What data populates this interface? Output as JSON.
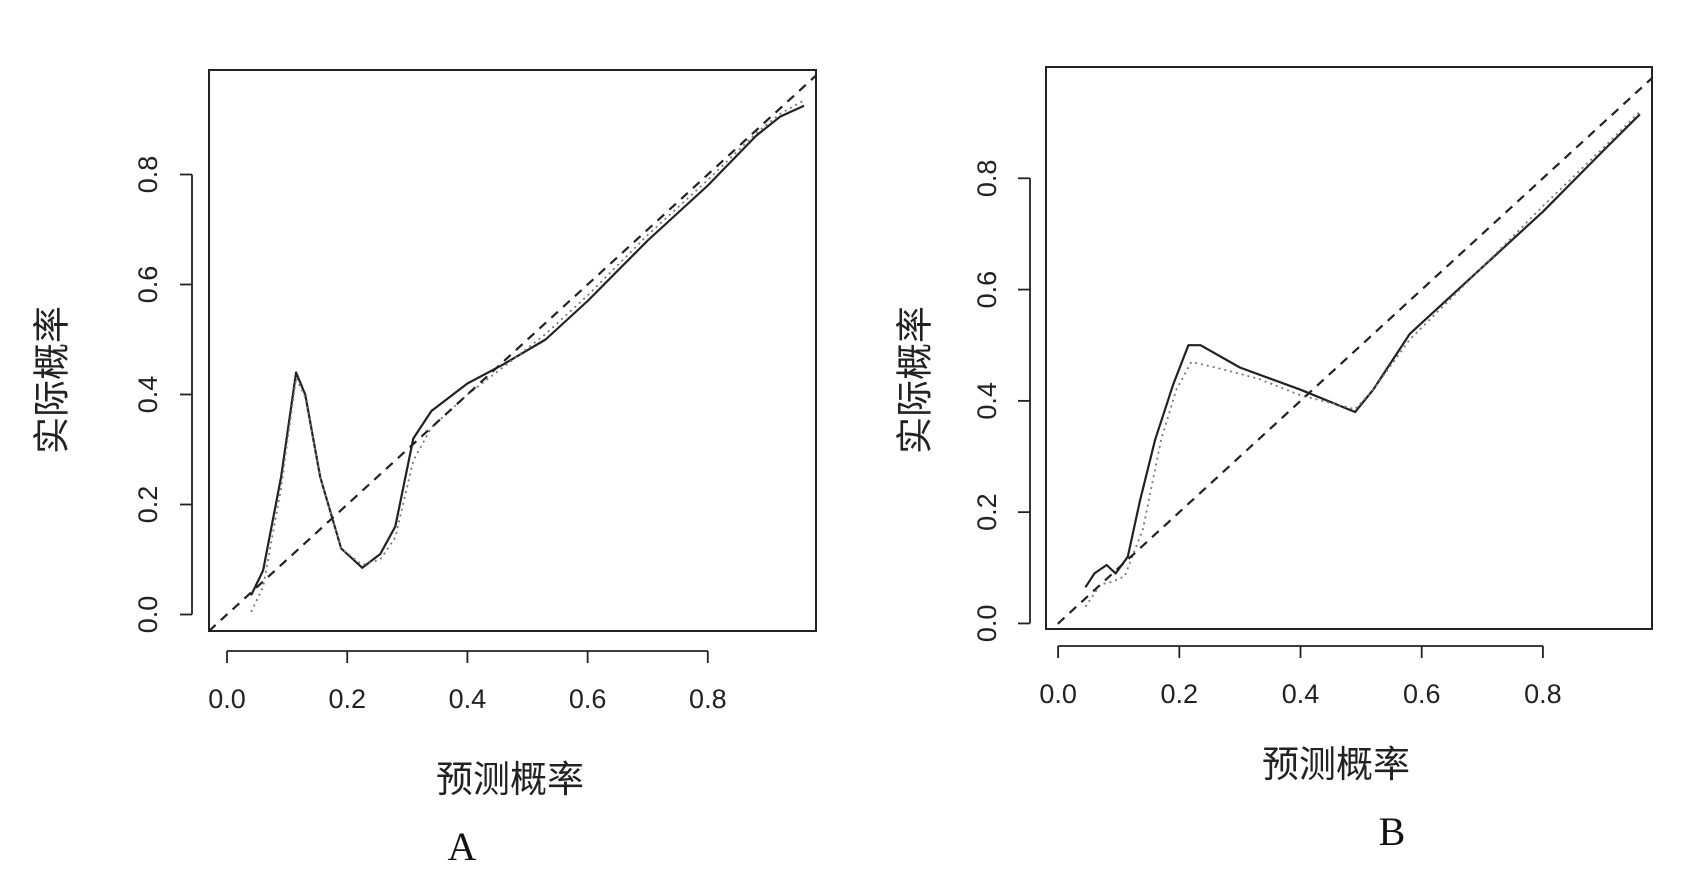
{
  "chart_data": [
    {
      "type": "line",
      "panel_label": "A",
      "xlabel": "预测概率",
      "ylabel": "实际概率",
      "xlim": [
        -0.03,
        0.98
      ],
      "ylim": [
        -0.03,
        0.99
      ],
      "xticks": [
        "0.0",
        "0.2",
        "0.4",
        "0.6",
        "0.8"
      ],
      "yticks": [
        "0.0",
        "0.2",
        "0.4",
        "0.6",
        "0.8"
      ],
      "grid": false,
      "series": [
        {
          "style": "solid",
          "color": "#222222",
          "x": [
            0.04,
            0.06,
            0.09,
            0.115,
            0.13,
            0.155,
            0.19,
            0.225,
            0.255,
            0.28,
            0.31,
            0.34,
            0.4,
            0.46,
            0.53,
            0.6,
            0.7,
            0.8,
            0.88,
            0.92,
            0.96
          ],
          "y": [
            0.035,
            0.08,
            0.25,
            0.44,
            0.4,
            0.25,
            0.12,
            0.085,
            0.11,
            0.16,
            0.32,
            0.37,
            0.42,
            0.455,
            0.5,
            0.57,
            0.68,
            0.78,
            0.87,
            0.905,
            0.925
          ]
        },
        {
          "style": "dotted",
          "color": "#777777",
          "x": [
            0.04,
            0.06,
            0.09,
            0.115,
            0.13,
            0.155,
            0.19,
            0.225,
            0.255,
            0.28,
            0.31,
            0.34,
            0.4,
            0.46,
            0.53,
            0.6,
            0.7,
            0.8,
            0.88,
            0.92,
            0.96
          ],
          "y": [
            0.005,
            0.05,
            0.23,
            0.43,
            0.395,
            0.25,
            0.12,
            0.09,
            0.1,
            0.14,
            0.28,
            0.34,
            0.4,
            0.45,
            0.51,
            0.58,
            0.69,
            0.79,
            0.875,
            0.91,
            0.935
          ]
        },
        {
          "style": "dashed",
          "color": "#222222",
          "x": [
            -0.03,
            0.98
          ],
          "y": [
            -0.03,
            0.98
          ]
        }
      ]
    },
    {
      "type": "line",
      "panel_label": "B",
      "xlabel": "预测概率",
      "ylabel": "实际概率",
      "xlim": [
        -0.02,
        0.98
      ],
      "ylim": [
        -0.01,
        1.0
      ],
      "xticks": [
        "0.0",
        "0.2",
        "0.4",
        "0.6",
        "0.8"
      ],
      "yticks": [
        "0.0",
        "0.2",
        "0.4",
        "0.6",
        "0.8"
      ],
      "grid": false,
      "series": [
        {
          "style": "solid",
          "color": "#222222",
          "x": [
            0.045,
            0.06,
            0.08,
            0.095,
            0.115,
            0.135,
            0.16,
            0.19,
            0.215,
            0.235,
            0.3,
            0.4,
            0.49,
            0.52,
            0.58,
            0.7,
            0.8,
            0.9,
            0.96
          ],
          "y": [
            0.065,
            0.09,
            0.105,
            0.09,
            0.12,
            0.22,
            0.33,
            0.43,
            0.5,
            0.5,
            0.46,
            0.42,
            0.38,
            0.42,
            0.52,
            0.64,
            0.74,
            0.85,
            0.915
          ]
        },
        {
          "style": "dotted",
          "color": "#777777",
          "x": [
            0.045,
            0.07,
            0.09,
            0.11,
            0.14,
            0.17,
            0.195,
            0.22,
            0.26,
            0.33,
            0.4,
            0.49,
            0.52,
            0.58,
            0.7,
            0.8,
            0.9,
            0.96
          ],
          "y": [
            0.03,
            0.07,
            0.075,
            0.085,
            0.17,
            0.33,
            0.42,
            0.47,
            0.46,
            0.44,
            0.41,
            0.385,
            0.42,
            0.51,
            0.64,
            0.75,
            0.855,
            0.92
          ]
        },
        {
          "style": "dashed",
          "color": "#222222",
          "x": [
            -0.02,
            0.98
          ],
          "y": [
            -0.02,
            0.98
          ]
        }
      ]
    }
  ]
}
